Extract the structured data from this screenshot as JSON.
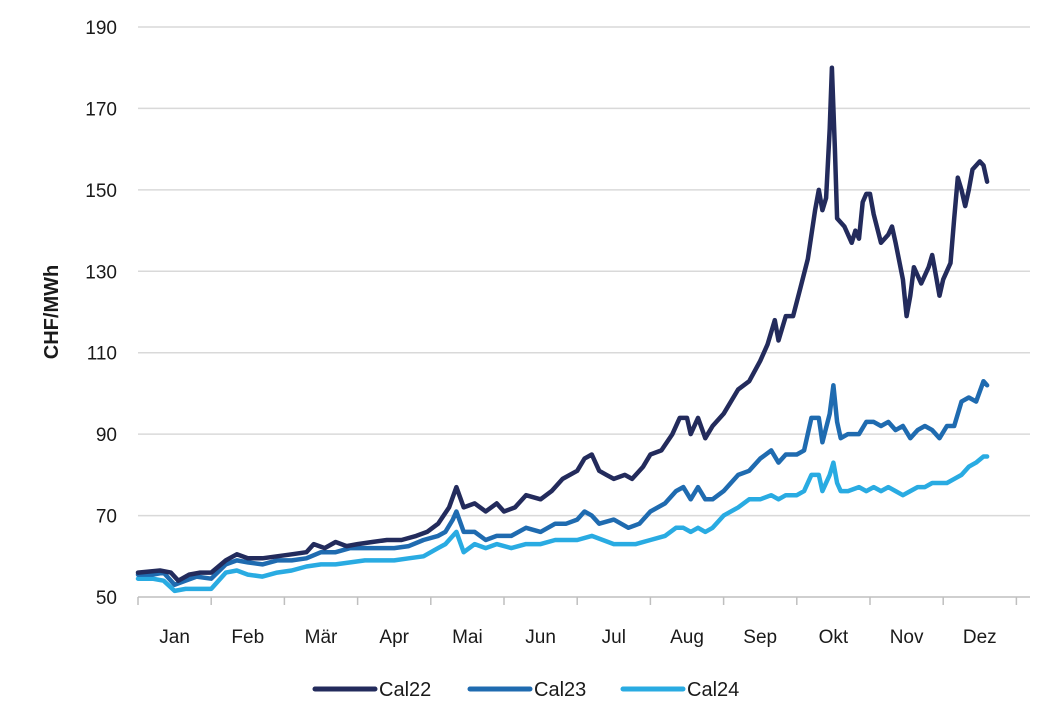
{
  "chart_data": {
    "type": "line",
    "title": "",
    "xlabel": "",
    "ylabel": "CHF/MWh",
    "ylim": [
      50,
      190
    ],
    "yticks": [
      50,
      70,
      90,
      110,
      130,
      150,
      170,
      190
    ],
    "categories": [
      "Jan",
      "Feb",
      "Mär",
      "Apr",
      "Mai",
      "Jun",
      "Jul",
      "Aug",
      "Sep",
      "Okt",
      "Nov",
      "Dez"
    ],
    "xlim": [
      0,
      12
    ],
    "grid": "horizontal",
    "legend": "bottom",
    "series": [
      {
        "name": "Cal22",
        "color": "#232b5c",
        "points": [
          [
            0.0,
            56
          ],
          [
            0.3,
            56.5
          ],
          [
            0.45,
            56
          ],
          [
            0.55,
            54
          ],
          [
            0.7,
            55.5
          ],
          [
            0.85,
            56
          ],
          [
            1.0,
            56
          ],
          [
            1.2,
            59
          ],
          [
            1.35,
            60.5
          ],
          [
            1.5,
            59.5
          ],
          [
            1.7,
            59.5
          ],
          [
            1.9,
            60
          ],
          [
            2.1,
            60.5
          ],
          [
            2.3,
            61
          ],
          [
            2.4,
            63
          ],
          [
            2.55,
            62
          ],
          [
            2.7,
            63.5
          ],
          [
            2.85,
            62.5
          ],
          [
            3.0,
            63
          ],
          [
            3.2,
            63.5
          ],
          [
            3.4,
            64
          ],
          [
            3.6,
            64
          ],
          [
            3.8,
            65
          ],
          [
            3.95,
            66
          ],
          [
            4.1,
            68
          ],
          [
            4.25,
            72
          ],
          [
            4.35,
            77
          ],
          [
            4.45,
            72
          ],
          [
            4.6,
            73
          ],
          [
            4.75,
            71
          ],
          [
            4.9,
            73
          ],
          [
            5.0,
            71
          ],
          [
            5.15,
            72
          ],
          [
            5.3,
            75
          ],
          [
            5.5,
            74
          ],
          [
            5.65,
            76
          ],
          [
            5.8,
            79
          ],
          [
            6.0,
            81
          ],
          [
            6.1,
            84
          ],
          [
            6.2,
            85
          ],
          [
            6.3,
            81
          ],
          [
            6.4,
            80
          ],
          [
            6.5,
            79
          ],
          [
            6.65,
            80
          ],
          [
            6.75,
            79
          ],
          [
            6.9,
            82
          ],
          [
            7.0,
            85
          ],
          [
            7.15,
            86
          ],
          [
            7.3,
            90
          ],
          [
            7.4,
            94
          ],
          [
            7.5,
            94
          ],
          [
            7.55,
            90
          ],
          [
            7.65,
            94
          ],
          [
            7.75,
            89
          ],
          [
            7.85,
            92
          ],
          [
            8.0,
            95
          ],
          [
            8.2,
            101
          ],
          [
            8.35,
            103
          ],
          [
            8.5,
            108
          ],
          [
            8.6,
            112
          ],
          [
            8.7,
            118
          ],
          [
            8.75,
            113
          ],
          [
            8.85,
            119
          ],
          [
            8.95,
            119
          ],
          [
            9.05,
            126
          ],
          [
            9.15,
            133
          ],
          [
            9.25,
            145
          ],
          [
            9.3,
            150
          ],
          [
            9.35,
            145
          ],
          [
            9.4,
            148
          ],
          [
            9.45,
            165
          ],
          [
            9.48,
            180
          ],
          [
            9.52,
            160
          ],
          [
            9.55,
            143
          ],
          [
            9.65,
            141
          ],
          [
            9.75,
            137
          ],
          [
            9.8,
            140
          ],
          [
            9.85,
            138
          ],
          [
            9.9,
            147
          ],
          [
            9.95,
            149
          ],
          [
            10.0,
            149
          ],
          [
            10.05,
            144
          ],
          [
            10.15,
            137
          ],
          [
            10.25,
            139
          ],
          [
            10.3,
            141
          ],
          [
            10.35,
            137
          ],
          [
            10.45,
            128
          ],
          [
            10.5,
            119
          ],
          [
            10.55,
            124
          ],
          [
            10.6,
            131
          ],
          [
            10.7,
            127
          ],
          [
            10.8,
            131
          ],
          [
            10.85,
            134
          ],
          [
            10.9,
            129
          ],
          [
            10.95,
            124
          ],
          [
            11.0,
            128
          ],
          [
            11.1,
            132
          ],
          [
            11.15,
            143
          ],
          [
            11.2,
            153
          ],
          [
            11.25,
            150
          ],
          [
            11.3,
            146
          ],
          [
            11.35,
            150
          ],
          [
            11.4,
            155
          ],
          [
            11.5,
            157
          ],
          [
            11.55,
            156
          ],
          [
            11.6,
            152
          ]
        ]
      },
      {
        "name": "Cal23",
        "color": "#1f6bb0",
        "points": [
          [
            0.0,
            55.5
          ],
          [
            0.2,
            55.5
          ],
          [
            0.35,
            56
          ],
          [
            0.5,
            53
          ],
          [
            0.65,
            54
          ],
          [
            0.8,
            55
          ],
          [
            1.0,
            54.5
          ],
          [
            1.2,
            58
          ],
          [
            1.35,
            59
          ],
          [
            1.5,
            58.5
          ],
          [
            1.7,
            58
          ],
          [
            1.9,
            59
          ],
          [
            2.1,
            59
          ],
          [
            2.3,
            59.5
          ],
          [
            2.5,
            61
          ],
          [
            2.7,
            61
          ],
          [
            2.9,
            62
          ],
          [
            3.1,
            62
          ],
          [
            3.3,
            62
          ],
          [
            3.5,
            62
          ],
          [
            3.7,
            62.5
          ],
          [
            3.9,
            64
          ],
          [
            4.1,
            65
          ],
          [
            4.2,
            66
          ],
          [
            4.3,
            69
          ],
          [
            4.35,
            71
          ],
          [
            4.45,
            66
          ],
          [
            4.6,
            66
          ],
          [
            4.75,
            64
          ],
          [
            4.9,
            65
          ],
          [
            5.1,
            65
          ],
          [
            5.3,
            67
          ],
          [
            5.5,
            66
          ],
          [
            5.7,
            68
          ],
          [
            5.85,
            68
          ],
          [
            6.0,
            69
          ],
          [
            6.1,
            71
          ],
          [
            6.2,
            70
          ],
          [
            6.3,
            68
          ],
          [
            6.5,
            69
          ],
          [
            6.7,
            67
          ],
          [
            6.85,
            68
          ],
          [
            7.0,
            71
          ],
          [
            7.2,
            73
          ],
          [
            7.35,
            76
          ],
          [
            7.45,
            77
          ],
          [
            7.55,
            74
          ],
          [
            7.65,
            77
          ],
          [
            7.75,
            74
          ],
          [
            7.85,
            74
          ],
          [
            8.0,
            76
          ],
          [
            8.2,
            80
          ],
          [
            8.35,
            81
          ],
          [
            8.5,
            84
          ],
          [
            8.65,
            86
          ],
          [
            8.75,
            83
          ],
          [
            8.85,
            85
          ],
          [
            9.0,
            85
          ],
          [
            9.1,
            86
          ],
          [
            9.2,
            94
          ],
          [
            9.3,
            94
          ],
          [
            9.35,
            88
          ],
          [
            9.45,
            95
          ],
          [
            9.5,
            102
          ],
          [
            9.55,
            93
          ],
          [
            9.6,
            89
          ],
          [
            9.7,
            90
          ],
          [
            9.85,
            90
          ],
          [
            9.95,
            93
          ],
          [
            10.05,
            93
          ],
          [
            10.15,
            92
          ],
          [
            10.25,
            93
          ],
          [
            10.35,
            91
          ],
          [
            10.45,
            92
          ],
          [
            10.55,
            89
          ],
          [
            10.65,
            91
          ],
          [
            10.75,
            92
          ],
          [
            10.85,
            91
          ],
          [
            10.95,
            89
          ],
          [
            11.05,
            92
          ],
          [
            11.15,
            92
          ],
          [
            11.25,
            98
          ],
          [
            11.35,
            99
          ],
          [
            11.45,
            98
          ],
          [
            11.55,
            103
          ],
          [
            11.6,
            102
          ]
        ]
      },
      {
        "name": "Cal24",
        "color": "#29abe2",
        "points": [
          [
            0.0,
            54.5
          ],
          [
            0.2,
            54.5
          ],
          [
            0.35,
            54
          ],
          [
            0.5,
            51.5
          ],
          [
            0.65,
            52
          ],
          [
            0.8,
            52
          ],
          [
            1.0,
            52
          ],
          [
            1.2,
            56
          ],
          [
            1.35,
            56.5
          ],
          [
            1.5,
            55.5
          ],
          [
            1.7,
            55
          ],
          [
            1.9,
            56
          ],
          [
            2.1,
            56.5
          ],
          [
            2.3,
            57.5
          ],
          [
            2.5,
            58
          ],
          [
            2.7,
            58
          ],
          [
            2.9,
            58.5
          ],
          [
            3.1,
            59
          ],
          [
            3.3,
            59
          ],
          [
            3.5,
            59
          ],
          [
            3.7,
            59.5
          ],
          [
            3.9,
            60
          ],
          [
            4.1,
            62
          ],
          [
            4.2,
            63
          ],
          [
            4.3,
            65
          ],
          [
            4.35,
            66
          ],
          [
            4.45,
            61
          ],
          [
            4.6,
            63
          ],
          [
            4.75,
            62
          ],
          [
            4.9,
            63
          ],
          [
            5.1,
            62
          ],
          [
            5.3,
            63
          ],
          [
            5.5,
            63
          ],
          [
            5.7,
            64
          ],
          [
            5.85,
            64
          ],
          [
            6.0,
            64
          ],
          [
            6.2,
            65
          ],
          [
            6.35,
            64
          ],
          [
            6.5,
            63
          ],
          [
            6.65,
            63
          ],
          [
            6.8,
            63
          ],
          [
            7.0,
            64
          ],
          [
            7.2,
            65
          ],
          [
            7.35,
            67
          ],
          [
            7.45,
            67
          ],
          [
            7.55,
            66
          ],
          [
            7.65,
            67
          ],
          [
            7.75,
            66
          ],
          [
            7.85,
            67
          ],
          [
            8.0,
            70
          ],
          [
            8.2,
            72
          ],
          [
            8.35,
            74
          ],
          [
            8.5,
            74
          ],
          [
            8.65,
            75
          ],
          [
            8.75,
            74
          ],
          [
            8.85,
            75
          ],
          [
            9.0,
            75
          ],
          [
            9.1,
            76
          ],
          [
            9.2,
            80
          ],
          [
            9.3,
            80
          ],
          [
            9.35,
            76
          ],
          [
            9.45,
            80
          ],
          [
            9.5,
            83
          ],
          [
            9.55,
            78
          ],
          [
            9.6,
            76
          ],
          [
            9.7,
            76
          ],
          [
            9.85,
            77
          ],
          [
            9.95,
            76
          ],
          [
            10.05,
            77
          ],
          [
            10.15,
            76
          ],
          [
            10.25,
            77
          ],
          [
            10.35,
            76
          ],
          [
            10.45,
            75
          ],
          [
            10.55,
            76
          ],
          [
            10.65,
            77
          ],
          [
            10.75,
            77
          ],
          [
            10.85,
            78
          ],
          [
            10.95,
            78
          ],
          [
            11.05,
            78
          ],
          [
            11.15,
            79
          ],
          [
            11.25,
            80
          ],
          [
            11.35,
            82
          ],
          [
            11.45,
            83
          ],
          [
            11.55,
            84.5
          ],
          [
            11.6,
            84.5
          ]
        ]
      }
    ]
  }
}
